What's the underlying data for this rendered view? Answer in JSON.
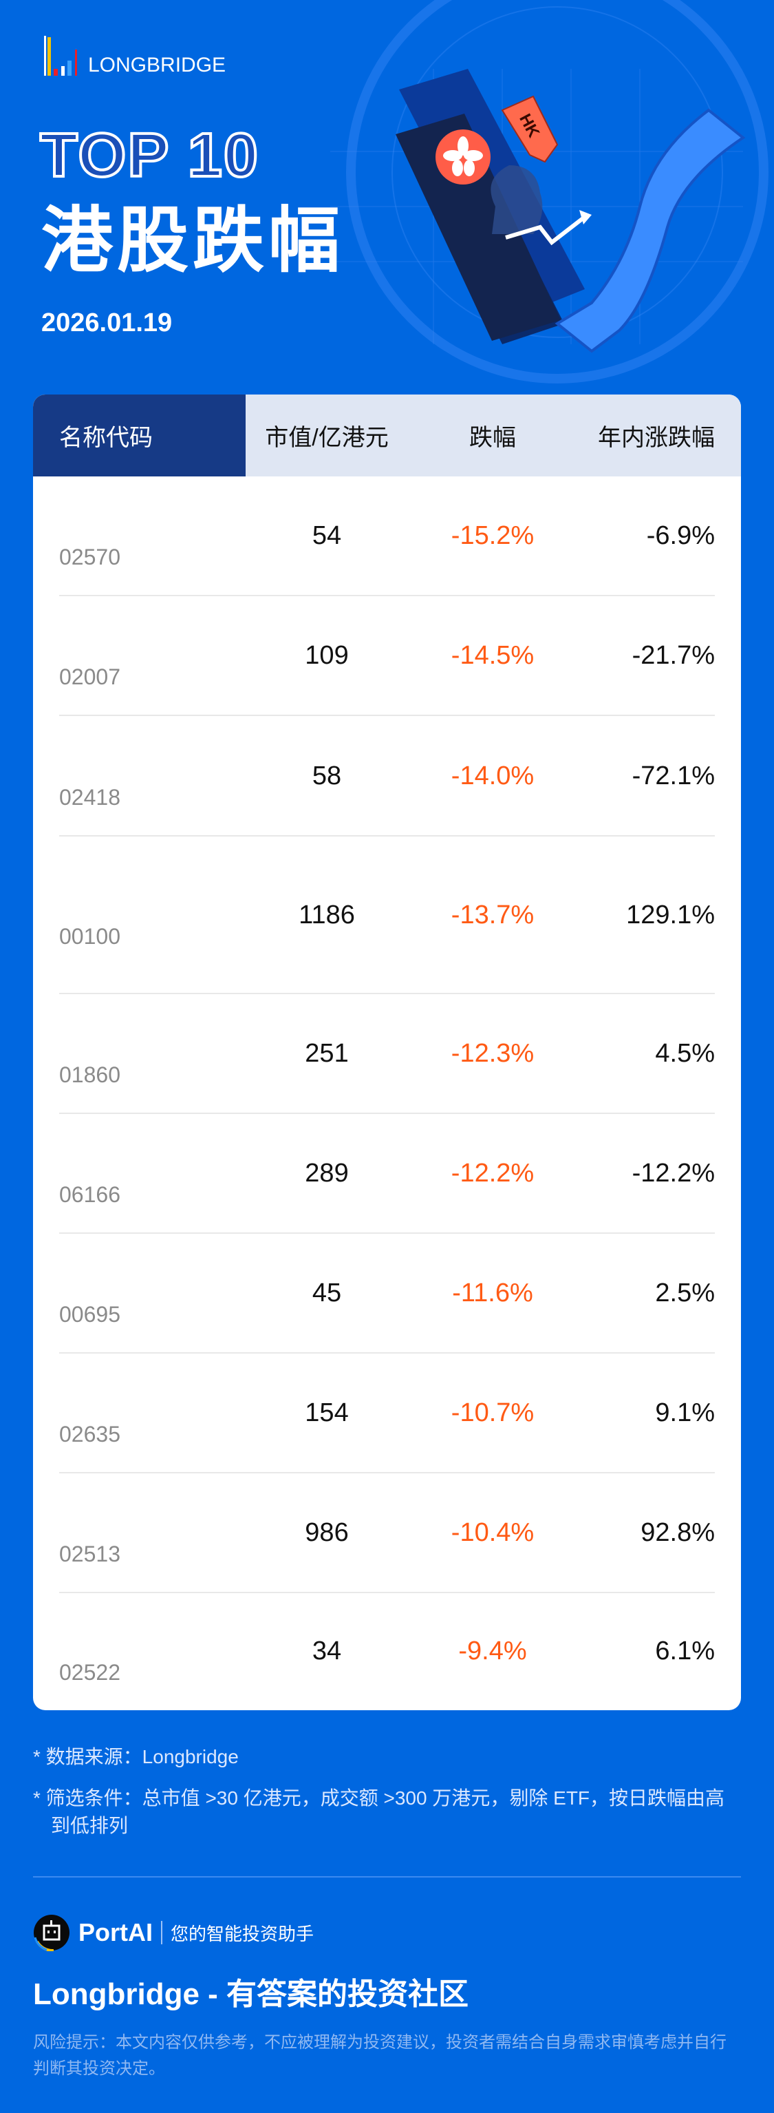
{
  "brand": {
    "logo_text": "LONGBRIDGE"
  },
  "header": {
    "top10": "TOP 10",
    "title": "港股跌幅",
    "date": "2026.01.19",
    "tag": "HK"
  },
  "table": {
    "columns": [
      "名称代码",
      "市值/亿港元",
      "跌幅",
      "年内涨跌幅"
    ],
    "rows": [
      {
        "code": "02570",
        "cap": "54",
        "chg": "-15.2%",
        "ytd": "-6.9%"
      },
      {
        "code": "02007",
        "cap": "109",
        "chg": "-14.5%",
        "ytd": "-21.7%"
      },
      {
        "code": "02418",
        "cap": "58",
        "chg": "-14.0%",
        "ytd": "-72.1%"
      },
      {
        "code": "00100",
        "cap": "1186",
        "chg": "-13.7%",
        "ytd": "129.1%"
      },
      {
        "code": "01860",
        "cap": "251",
        "chg": "-12.3%",
        "ytd": "4.5%"
      },
      {
        "code": "06166",
        "cap": "289",
        "chg": "-12.2%",
        "ytd": "-12.2%"
      },
      {
        "code": "00695",
        "cap": "45",
        "chg": "-11.6%",
        "ytd": "2.5%"
      },
      {
        "code": "02635",
        "cap": "154",
        "chg": "-10.7%",
        "ytd": "9.1%"
      },
      {
        "code": "02513",
        "cap": "986",
        "chg": "-10.4%",
        "ytd": "92.8%"
      },
      {
        "code": "02522",
        "cap": "34",
        "chg": "-9.4%",
        "ytd": "6.1%"
      }
    ]
  },
  "notes": {
    "source": "* 数据来源：Longbridge",
    "filter": "* 筛选条件：总市值 >30 亿港元，成交额 >300 万港元，剔除 ETF，按日跌幅由高到低排列"
  },
  "footer": {
    "portai_name": "PortAI",
    "portai_tagline": "您的智能投资助手",
    "slogan": "Longbridge - 有答案的投资社区",
    "risk": "风险提示：本文内容仅供参考，不应被理解为投资建议，投资者需结合自身需求审慎考虑并自行判断其投资决定。"
  },
  "colors": {
    "background": "#0067e0",
    "header_dark": "#163a86",
    "header_light": "#dfe6f3",
    "decline": "#ff5a14"
  }
}
